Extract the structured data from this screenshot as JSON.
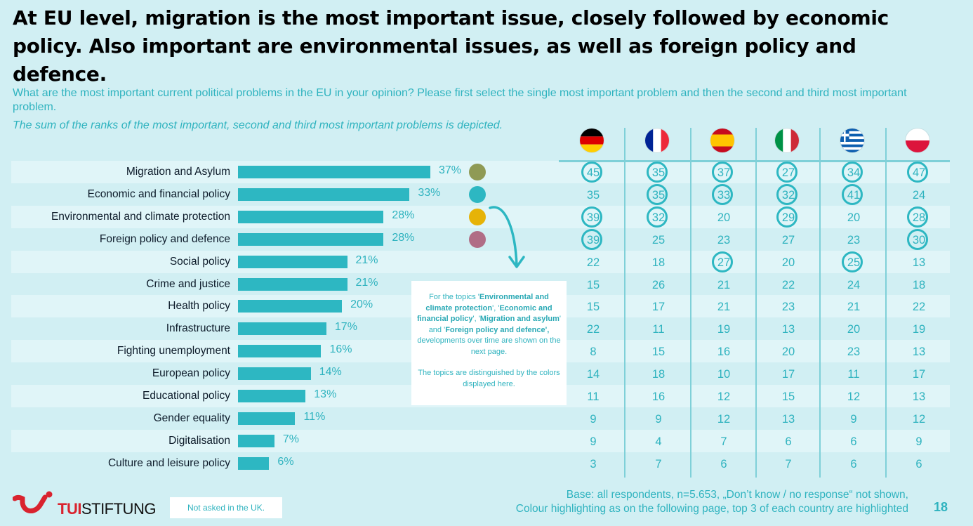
{
  "header": {
    "title": "At EU level, migration is the most important issue, closely followed by economic policy. Also important are environmental issues, as well as foreign policy and defence.",
    "question": "What are the most important current political problems in the EU in your opinion? Please first select the single most important problem and then the second and third most important problem.",
    "note": "The sum of the ranks of the most important, second and third most important problems is depicted."
  },
  "colors": {
    "background": "#d1eff3",
    "accent": "#2db7c2",
    "stripe_light": "#e0f5f8",
    "brand_red": "#d9232e"
  },
  "chart_data": [
    {
      "type": "bar",
      "orientation": "horizontal",
      "title": "EU total",
      "categories": [
        "Migration and Asylum",
        "Economic and financial policy",
        "Environmental and climate protection",
        "Foreign policy and defence",
        "Social policy",
        "Crime and justice",
        "Health policy",
        "Infrastructure",
        "Fighting unemployment",
        "European policy",
        "Educational policy",
        "Gender equality",
        "Digitalisation",
        "Culture and leisure policy"
      ],
      "values": [
        37,
        33,
        28,
        28,
        21,
        21,
        20,
        17,
        16,
        14,
        13,
        11,
        7,
        6
      ],
      "value_labels": [
        "37%",
        "33%",
        "28%",
        "28%",
        "21%",
        "21%",
        "20%",
        "17%",
        "16%",
        "14%",
        "13%",
        "11%",
        "7%",
        "6%"
      ],
      "unit": "%",
      "xlim": [
        0,
        37
      ],
      "topic_colors": [
        {
          "category": "Migration and Asylum",
          "color": "#8f9a55"
        },
        {
          "category": "Economic and financial policy",
          "color": "#2db7c2"
        },
        {
          "category": "Environmental and climate protection",
          "color": "#e6b307"
        },
        {
          "category": "Foreign policy and defence",
          "color": "#b06d86"
        }
      ]
    },
    {
      "type": "table",
      "title": "By country",
      "columns": [
        {
          "country": "Germany",
          "flag": "de-flag-icon"
        },
        {
          "country": "France",
          "flag": "fr-flag-icon"
        },
        {
          "country": "Spain",
          "flag": "es-flag-icon"
        },
        {
          "country": "Italy",
          "flag": "it-flag-icon"
        },
        {
          "country": "Greece",
          "flag": "gr-flag-icon"
        },
        {
          "country": "Poland",
          "flag": "pl-flag-icon"
        }
      ],
      "rows": [
        [
          45,
          35,
          37,
          27,
          34,
          47
        ],
        [
          35,
          35,
          33,
          32,
          41,
          24
        ],
        [
          39,
          32,
          20,
          29,
          20,
          28
        ],
        [
          39,
          25,
          23,
          27,
          23,
          30
        ],
        [
          22,
          18,
          27,
          20,
          25,
          13
        ],
        [
          15,
          26,
          21,
          22,
          24,
          18
        ],
        [
          15,
          17,
          21,
          23,
          21,
          22
        ],
        [
          22,
          11,
          19,
          13,
          20,
          19
        ],
        [
          8,
          15,
          16,
          20,
          23,
          13
        ],
        [
          14,
          18,
          10,
          17,
          11,
          17
        ],
        [
          11,
          16,
          12,
          15,
          12,
          13
        ],
        [
          9,
          9,
          12,
          13,
          9,
          12
        ],
        [
          9,
          4,
          7,
          6,
          6,
          9
        ],
        [
          3,
          7,
          6,
          7,
          6,
          6
        ]
      ],
      "highlighted": [
        [
          true,
          true,
          true,
          true,
          true,
          true
        ],
        [
          false,
          true,
          true,
          true,
          true,
          false
        ],
        [
          true,
          true,
          false,
          true,
          false,
          true
        ],
        [
          true,
          false,
          false,
          false,
          false,
          true
        ],
        [
          false,
          false,
          true,
          false,
          true,
          false
        ],
        [
          false,
          false,
          false,
          false,
          false,
          false
        ],
        [
          false,
          false,
          false,
          false,
          false,
          false
        ],
        [
          false,
          false,
          false,
          false,
          false,
          false
        ],
        [
          false,
          false,
          false,
          false,
          false,
          false
        ],
        [
          false,
          false,
          false,
          false,
          false,
          false
        ],
        [
          false,
          false,
          false,
          false,
          false,
          false
        ],
        [
          false,
          false,
          false,
          false,
          false,
          false
        ],
        [
          false,
          false,
          false,
          false,
          false,
          false
        ],
        [
          false,
          false,
          false,
          false,
          false,
          false
        ]
      ]
    }
  ],
  "info_box": {
    "p1_pre": "For the topics '",
    "t1": "Environmental and climate protection",
    "sep1": "', '",
    "t2": "Economic and financial policy",
    "sep2": "', '",
    "t3": "Migration and asylum",
    "sep3": "' and '",
    "t4": "Foreign policy and defence',",
    "p1_post": " developments over time are shown on the next page.",
    "p2": "The topics are distinguished by the colors displayed here."
  },
  "footer": {
    "logo_tui": "TUI",
    "logo_stiftung": "STIFTUNG",
    "not_asked": "Not asked in the UK.",
    "base_line1": "Base: all respondents, n=5.653, „Don’t know / no response“ not shown,",
    "base_line2": "Colour highlighting as on the following page, top 3 of each country are highlighted",
    "page_number": "18"
  }
}
